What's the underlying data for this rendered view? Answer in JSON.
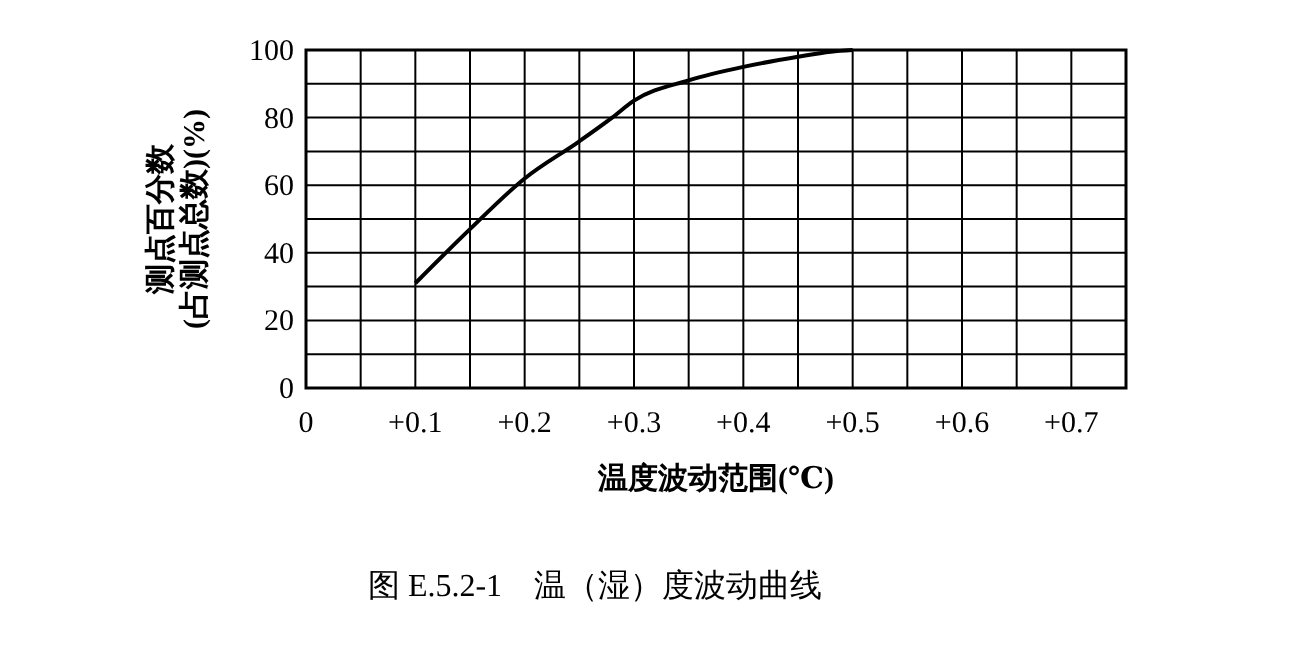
{
  "chart_data": {
    "type": "line",
    "title": "图 E.5.2-1　温（湿）度波动曲线",
    "xlabel": "温度波动范围(℃)",
    "ylabel": "测点百分数\n(占测点总数)(%)",
    "x": [
      0.1,
      0.15,
      0.2,
      0.25,
      0.28,
      0.3,
      0.35,
      0.4,
      0.45,
      0.48,
      0.5
    ],
    "series": [
      {
        "color": "#000000",
        "values": [
          31,
          47,
          62,
          73,
          80,
          85,
          91,
          95,
          98,
          99.5,
          100
        ]
      }
    ],
    "xlim": [
      0,
      0.75
    ],
    "xticks": [
      {
        "value": 0,
        "label": "0"
      },
      {
        "value": 0.05,
        "label": null
      },
      {
        "value": 0.1,
        "label": "+0.1"
      },
      {
        "value": 0.15,
        "label": null
      },
      {
        "value": 0.2,
        "label": "+0.2"
      },
      {
        "value": 0.25,
        "label": null
      },
      {
        "value": 0.3,
        "label": "+0.3"
      },
      {
        "value": 0.35,
        "label": null
      },
      {
        "value": 0.4,
        "label": "+0.4"
      },
      {
        "value": 0.45,
        "label": null
      },
      {
        "value": 0.5,
        "label": "+0.5"
      },
      {
        "value": 0.55,
        "label": null
      },
      {
        "value": 0.6,
        "label": "+0.6"
      },
      {
        "value": 0.65,
        "label": null
      },
      {
        "value": 0.7,
        "label": "+0.7"
      },
      {
        "value": 0.75,
        "label": null
      }
    ],
    "ylim": [
      0,
      100
    ],
    "yticks": [
      0,
      {
        "value": 10,
        "label": null
      },
      20,
      {
        "value": 30,
        "label": null
      },
      40,
      {
        "value": 50,
        "label": null
      },
      60,
      {
        "value": 70,
        "label": null
      },
      80,
      {
        "value": 90,
        "label": null
      },
      100
    ],
    "grid": true,
    "marker": "none",
    "line_style": "solid"
  }
}
